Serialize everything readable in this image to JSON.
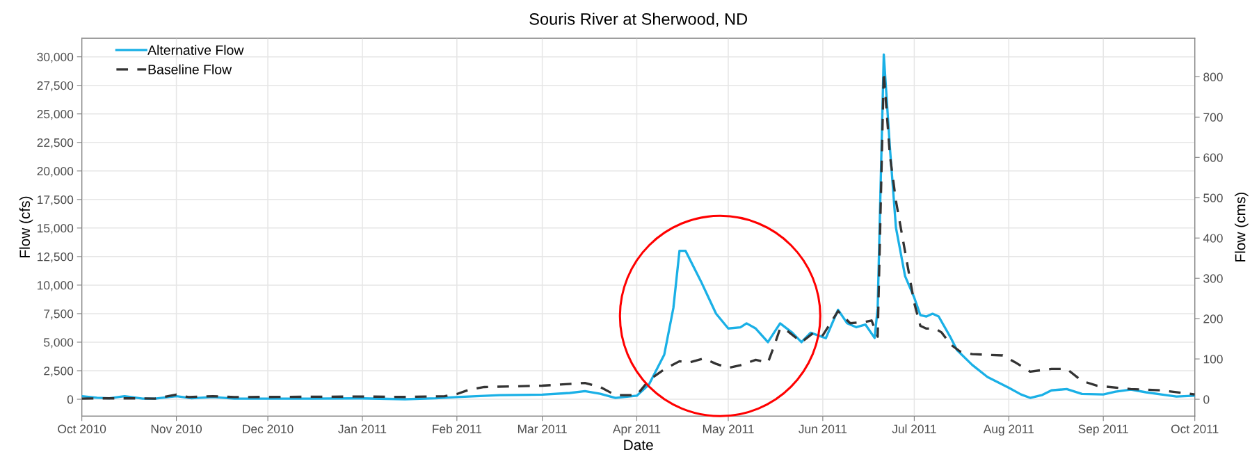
{
  "chart_data": {
    "type": "line",
    "title": "Souris River at Sherwood, ND",
    "xlabel": "Date",
    "ylabel": "Flow (cfs)",
    "y2label": "Flow (cms)",
    "xlim": [
      "2010-10-01",
      "2011-10-01"
    ],
    "xticks": [
      {
        "value": "2010-10-01",
        "label": "Oct 2010"
      },
      {
        "value": "2010-11-01",
        "label": "Nov 2010"
      },
      {
        "value": "2010-12-01",
        "label": "Dec 2010"
      },
      {
        "value": "2011-01-01",
        "label": "Jan 2011"
      },
      {
        "value": "2011-02-01",
        "label": "Feb 2011"
      },
      {
        "value": "2011-03-01",
        "label": "Mar 2011"
      },
      {
        "value": "2011-04-01",
        "label": "Apr 2011"
      },
      {
        "value": "2011-05-01",
        "label": "May 2011"
      },
      {
        "value": "2011-06-01",
        "label": "Jun 2011"
      },
      {
        "value": "2011-07-01",
        "label": "Jul 2011"
      },
      {
        "value": "2011-08-01",
        "label": "Aug 2011"
      },
      {
        "value": "2011-09-01",
        "label": "Sep 2011"
      },
      {
        "value": "2011-10-01",
        "label": "Oct 2011"
      }
    ],
    "ylim": [
      -1480,
      31630
    ],
    "yticks": [
      0,
      {
        "value": 2500,
        "label": "2,500"
      },
      {
        "value": 5000,
        "label": "5,000"
      },
      {
        "value": 7500,
        "label": "7,500"
      },
      {
        "value": 10000,
        "label": "10,000"
      },
      {
        "value": 12500,
        "label": "12,500"
      },
      {
        "value": 15000,
        "label": "15,000"
      },
      {
        "value": 17500,
        "label": "17,500"
      },
      {
        "value": 20000,
        "label": "20,000"
      },
      {
        "value": 22500,
        "label": "22,500"
      },
      {
        "value": 25000,
        "label": "25,000"
      },
      {
        "value": 27500,
        "label": "27,500"
      },
      {
        "value": 30000,
        "label": "30,000"
      }
    ],
    "y2lim": [
      -41.9,
      895.7
    ],
    "y2ticks": [
      0,
      100,
      200,
      300,
      400,
      500,
      600,
      700,
      800
    ],
    "grid": true,
    "legend": "top left",
    "marker": "none",
    "series": [
      {
        "name": "Alternative Flow",
        "color": "#1ab0e6",
        "line_style": "solid",
        "x": [
          "2010-10-01",
          "2010-10-06",
          "2010-10-10",
          "2010-10-15",
          "2010-10-21",
          "2010-10-25",
          "2010-11-01",
          "2010-11-06",
          "2010-11-13",
          "2010-11-20",
          "2010-12-15",
          "2011-01-01",
          "2011-01-15",
          "2011-01-25",
          "2011-02-01",
          "2011-02-15",
          "2011-03-01",
          "2011-03-10",
          "2011-03-15",
          "2011-03-20",
          "2011-03-25",
          "2011-04-01",
          "2011-04-05",
          "2011-04-10",
          "2011-04-13",
          "2011-04-15",
          "2011-04-17",
          "2011-04-22",
          "2011-04-27",
          "2011-05-01",
          "2011-05-05",
          "2011-05-07",
          "2011-05-10",
          "2011-05-14",
          "2011-05-18",
          "2011-05-22",
          "2011-05-25",
          "2011-05-28",
          "2011-06-02",
          "2011-06-06",
          "2011-06-09",
          "2011-06-12",
          "2011-06-15",
          "2011-06-18",
          "2011-06-19",
          "2011-06-21",
          "2011-06-23",
          "2011-06-25",
          "2011-06-28",
          "2011-07-01",
          "2011-07-03",
          "2011-07-05",
          "2011-07-07",
          "2011-07-09",
          "2011-07-13",
          "2011-07-15",
          "2011-07-20",
          "2011-07-25",
          "2011-08-01",
          "2011-08-05",
          "2011-08-08",
          "2011-08-12",
          "2011-08-15",
          "2011-08-20",
          "2011-08-25",
          "2011-09-01",
          "2011-09-05",
          "2011-09-10",
          "2011-09-15",
          "2011-09-20",
          "2011-09-25",
          "2011-10-01"
        ],
        "values": [
          270,
          130,
          80,
          270,
          50,
          50,
          270,
          80,
          190,
          50,
          50,
          80,
          0,
          80,
          190,
          360,
          400,
          550,
          710,
          480,
          120,
          310,
          1300,
          3900,
          8000,
          13000,
          13000,
          10350,
          7500,
          6200,
          6300,
          6650,
          6200,
          5000,
          6650,
          5830,
          5000,
          5830,
          5350,
          7840,
          6660,
          6310,
          6540,
          5370,
          7960,
          30200,
          22080,
          15020,
          10780,
          8900,
          7370,
          7250,
          7490,
          7250,
          5370,
          4310,
          3010,
          1950,
          1010,
          420,
          120,
          380,
          780,
          890,
          470,
          420,
          660,
          850,
          610,
          420,
          240,
          310
        ]
      },
      {
        "name": "Baseline Flow",
        "color": "#333333",
        "line_style": "dashed",
        "x": [
          "2010-10-01",
          "2010-10-08",
          "2010-10-15",
          "2010-10-20",
          "2010-10-25",
          "2010-11-01",
          "2010-11-05",
          "2010-11-13",
          "2010-11-20",
          "2010-12-01",
          "2011-01-01",
          "2011-01-15",
          "2011-01-28",
          "2011-02-01",
          "2011-02-05",
          "2011-02-10",
          "2011-03-01",
          "2011-03-15",
          "2011-03-20",
          "2011-03-25",
          "2011-04-01",
          "2011-04-05",
          "2011-04-10",
          "2011-04-15",
          "2011-04-18",
          "2011-04-23",
          "2011-04-27",
          "2011-05-01",
          "2011-05-05",
          "2011-05-10",
          "2011-05-14",
          "2011-05-16",
          "2011-05-18",
          "2011-05-20",
          "2011-05-25",
          "2011-05-29",
          "2011-06-01",
          "2011-06-06",
          "2011-06-10",
          "2011-06-15",
          "2011-06-17",
          "2011-06-19",
          "2011-06-21",
          "2011-06-23",
          "2011-06-25",
          "2011-07-01",
          "2011-07-03",
          "2011-07-05",
          "2011-07-08",
          "2011-07-10",
          "2011-07-13",
          "2011-07-16",
          "2011-07-20",
          "2011-07-30",
          "2011-08-03",
          "2011-08-08",
          "2011-08-15",
          "2011-08-20",
          "2011-08-25",
          "2011-08-30",
          "2011-09-10",
          "2011-09-20",
          "2011-10-01"
        ],
        "values": [
          50,
          80,
          80,
          80,
          50,
          400,
          190,
          270,
          190,
          200,
          240,
          200,
          270,
          460,
          830,
          1070,
          1190,
          1430,
          1070,
          360,
          360,
          1670,
          2620,
          3330,
          3210,
          3570,
          3100,
          2740,
          2980,
          3450,
          3210,
          4640,
          6200,
          6070,
          5000,
          5830,
          5600,
          7720,
          6660,
          6780,
          6900,
          5480,
          28670,
          21370,
          17370,
          8430,
          6430,
          6190,
          6190,
          5840,
          4780,
          4190,
          3950,
          3840,
          3250,
          2420,
          2660,
          2660,
          1600,
          1180,
          890,
          780,
          420
        ]
      }
    ]
  }
}
